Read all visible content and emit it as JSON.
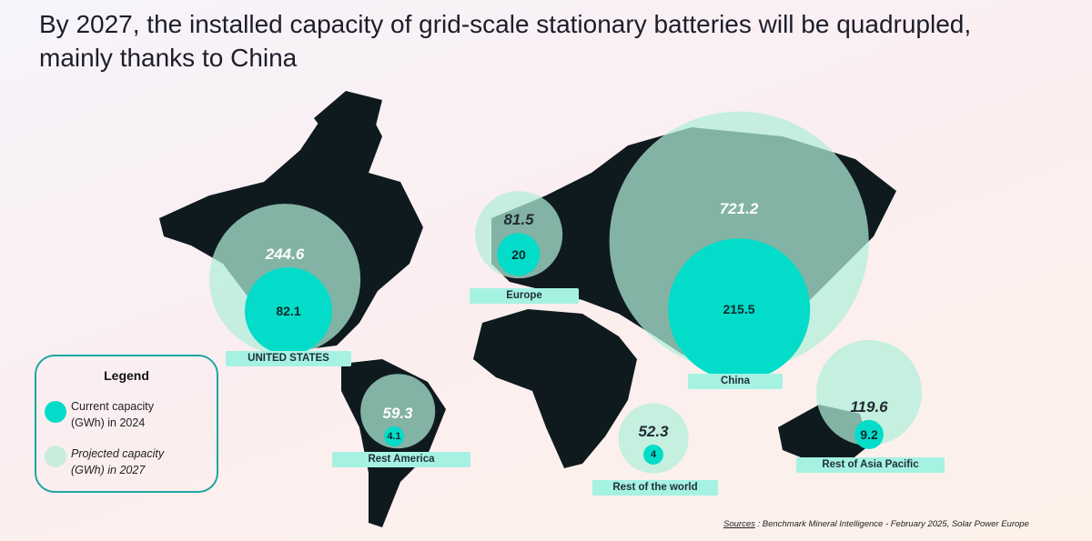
{
  "title": "By 2027, the installed capacity of grid-scale stationary batteries will be quadrupled, mainly thanks to China",
  "colors": {
    "current": "#03dcc9",
    "projected": "#b0eeda",
    "land": "#0f1a1f",
    "label_bg": "#a6f2e2",
    "legend_border": "#1aa7a3"
  },
  "chart_data": {
    "type": "bubble-map",
    "unit": "GWh",
    "regions": [
      {
        "name": "UNITED STATES",
        "current_2024": 82.1,
        "projected_2027": 244.6
      },
      {
        "name": "Europe",
        "current_2024": 20,
        "projected_2027": 81.5
      },
      {
        "name": "China",
        "current_2024": 215.5,
        "projected_2027": 721.2
      },
      {
        "name": "Rest America",
        "current_2024": 4.1,
        "projected_2027": 59.3
      },
      {
        "name": "Rest of the world",
        "current_2024": 4,
        "projected_2027": 52.3
      },
      {
        "name": "Rest of Asia Pacific",
        "current_2024": 9.2,
        "projected_2027": 119.6
      }
    ]
  },
  "values_text": {
    "us_proj": "244.6",
    "us_cur": "82.1",
    "eu_proj": "81.5",
    "eu_cur": "20",
    "cn_proj": "721.2",
    "cn_cur": "215.5",
    "ra_proj": "59.3",
    "ra_cur": "4.1",
    "rw_proj": "52.3",
    "rw_cur": "4",
    "ap_proj": "119.6",
    "ap_cur": "9.2"
  },
  "legend": {
    "title": "Legend",
    "current": "Current capacity (GWh) in 2024",
    "projected": "Projected capacity (GWh) in 2027"
  },
  "sources": {
    "label": "Sources",
    "text": " : Benchmark Mineral Intelligence - February 2025, Solar Power Europe"
  }
}
